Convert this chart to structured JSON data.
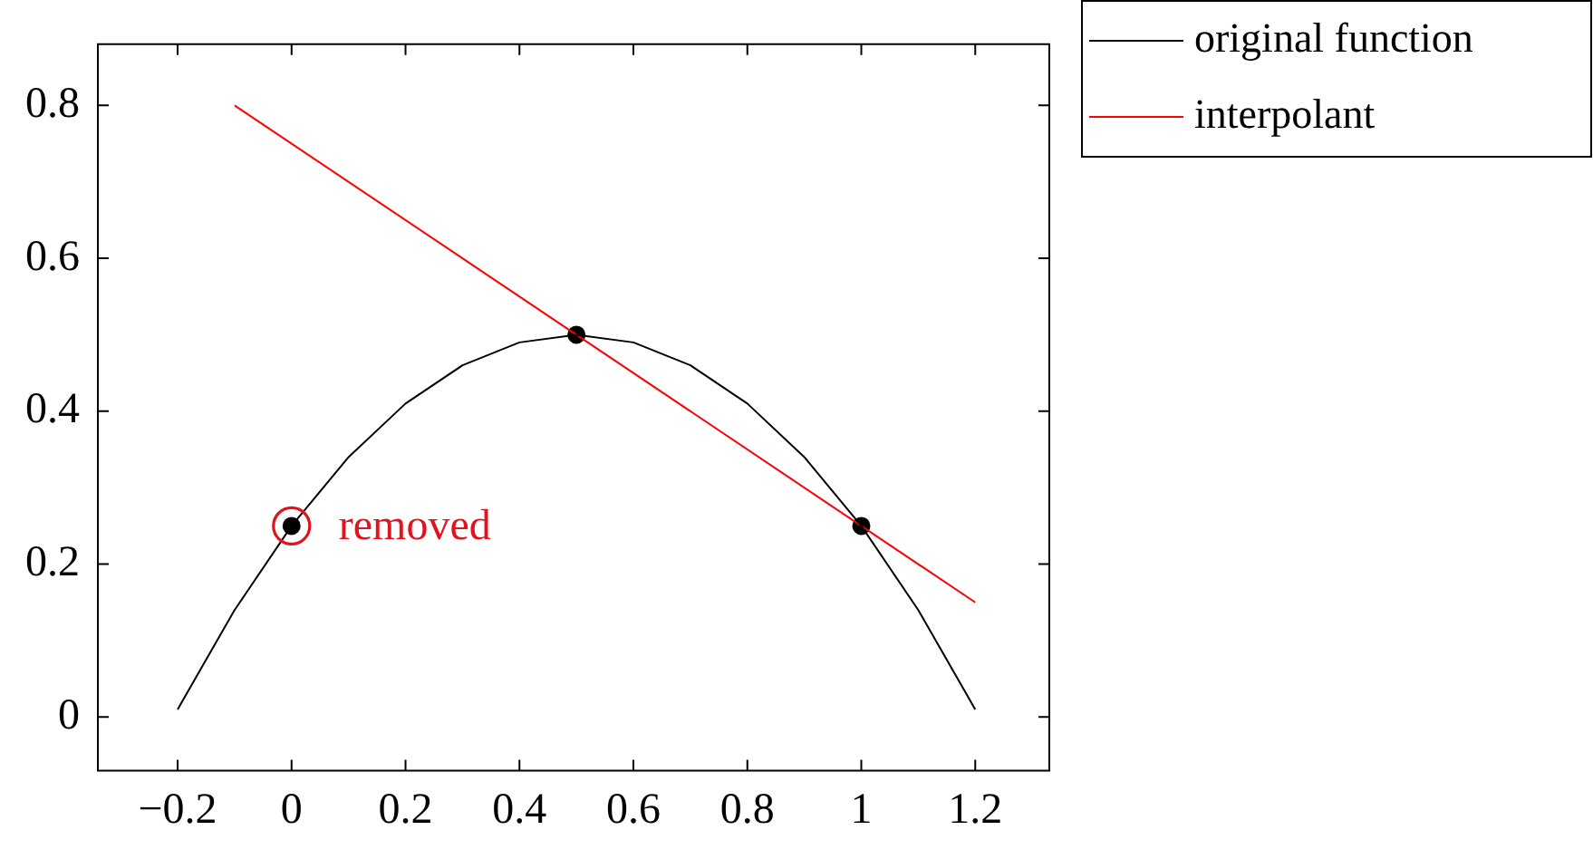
{
  "chart_data": {
    "type": "line",
    "xlim": [
      -0.34,
      1.33
    ],
    "ylim": [
      -0.07,
      0.88
    ],
    "xticks": [
      {
        "value": -0.2,
        "label": "−0.2"
      },
      0,
      0.2,
      0.4,
      0.6,
      0.8,
      1,
      1.2
    ],
    "yticks": [
      0,
      0.2,
      0.4,
      0.6,
      0.8
    ],
    "grid": false,
    "legend": "top right",
    "marker": "none",
    "series": [
      {
        "name": "original function",
        "color": "#000000",
        "x": [
          -0.2,
          -0.1,
          0,
          0.1,
          0.2,
          0.3,
          0.4,
          0.5,
          0.6,
          0.7,
          0.8,
          0.9,
          1,
          1.1,
          1.2
        ],
        "values": [
          0.01,
          0.14,
          0.25,
          0.34,
          0.41,
          0.46,
          0.49,
          0.5,
          0.49,
          0.46,
          0.41,
          0.34,
          0.25,
          0.14,
          0.01
        ]
      },
      {
        "name": "interpolant",
        "color": "#ff0000",
        "x": [
          -0.1,
          1.2
        ],
        "values": [
          0.8,
          0.15
        ]
      },
      {
        "type": "scatter",
        "marker": "circle",
        "color": "#000000",
        "x": [
          0,
          0.5,
          1
        ],
        "values": [
          0.25,
          0.5,
          0.25
        ]
      }
    ],
    "annotations": [
      {
        "text": "removed",
        "x": 0,
        "y": 0.25
      }
    ]
  }
}
